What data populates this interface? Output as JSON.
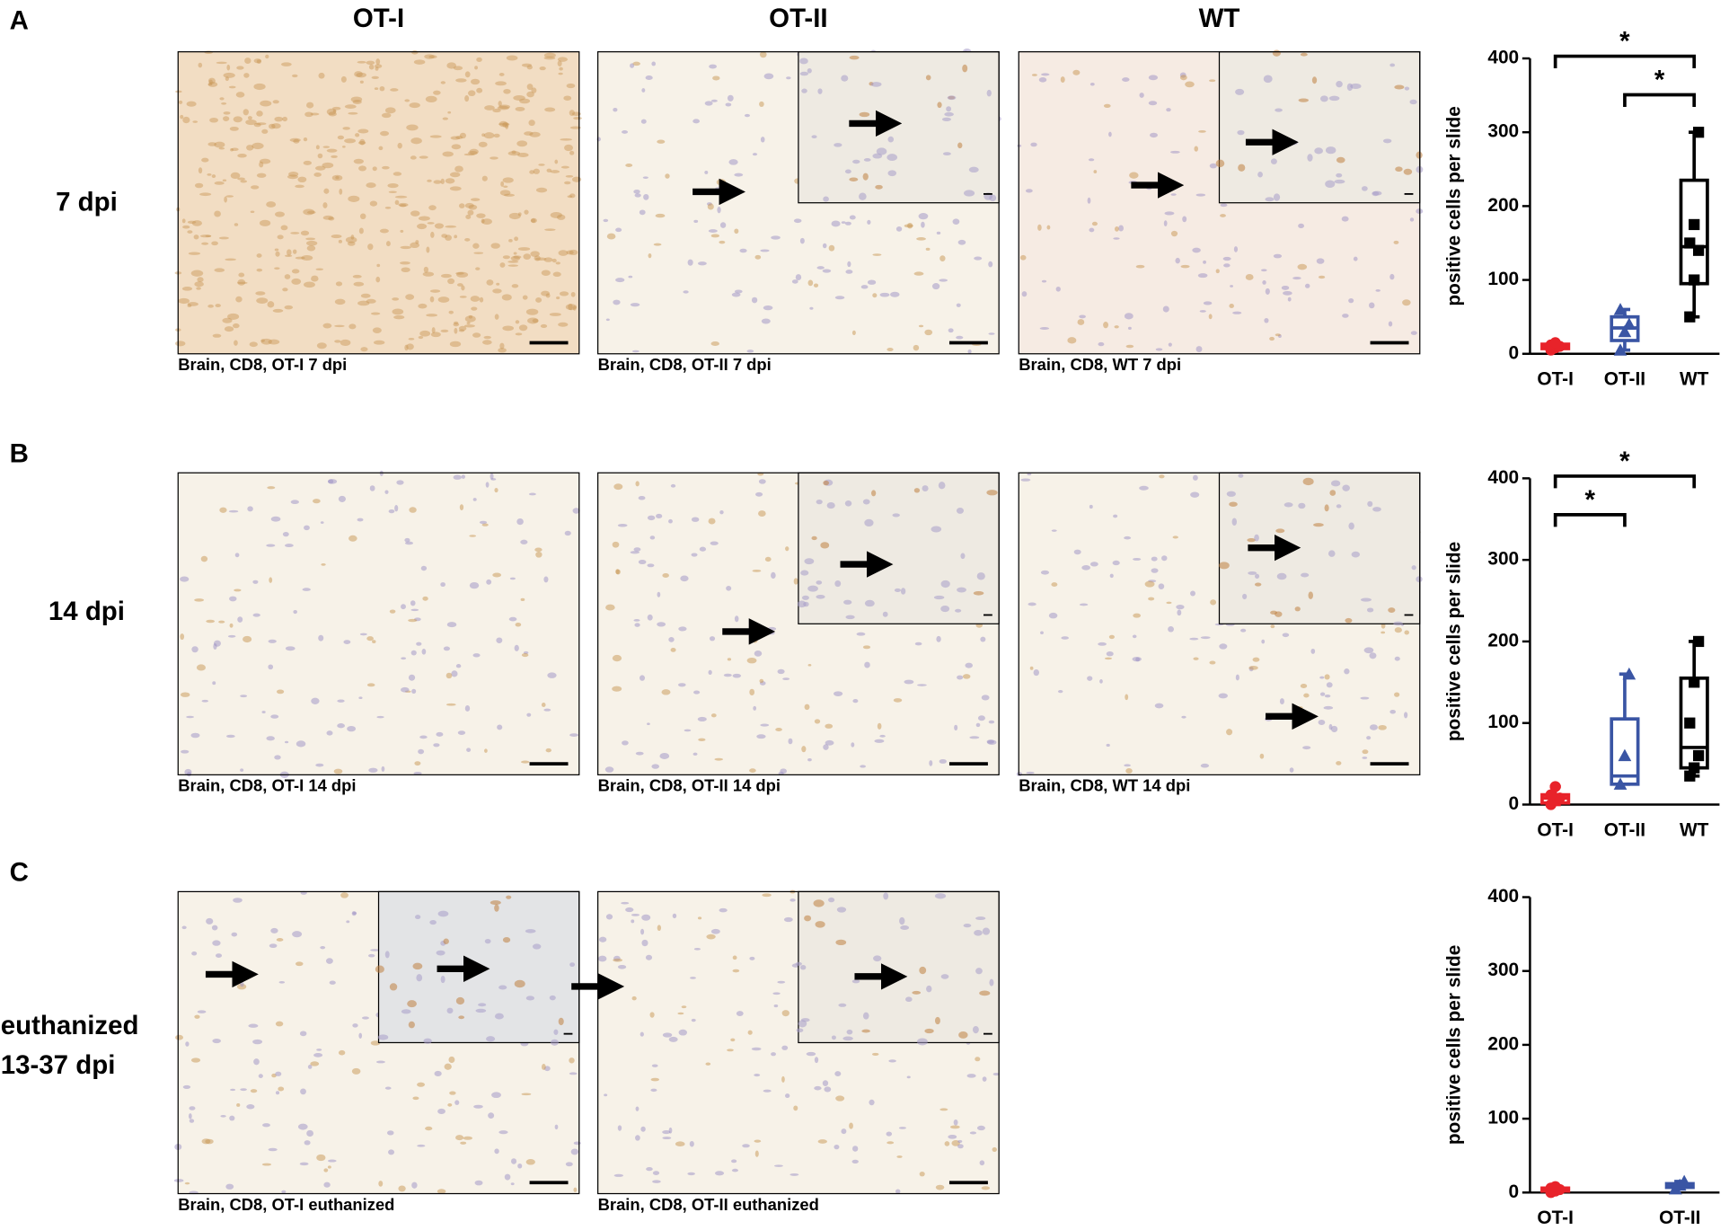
{
  "columns": [
    "OT-I",
    "OT-II",
    "WT"
  ],
  "rows": [
    {
      "letter": "A",
      "label": [
        "7 dpi"
      ],
      "captions": [
        "Brain, CD8, OT-I 7 dpi",
        "Brain, CD8, OT-II 7 dpi",
        "Brain, CD8, WT 7 dpi"
      ]
    },
    {
      "letter": "B",
      "label": [
        "14 dpi"
      ],
      "captions": [
        "Brain, CD8, OT-I 14 dpi",
        "Brain, CD8, OT-II 14 dpi",
        "Brain, CD8, WT 14 dpi"
      ]
    },
    {
      "letter": "C",
      "label": [
        "euthanized",
        "13-37 dpi"
      ],
      "captions": [
        "Brain, CD8, OT-I euthanized",
        "Brain, CD8, OT-II euthanized"
      ]
    }
  ],
  "chart_data": [
    {
      "type": "box",
      "ylabel": "positive cells per slide",
      "categories": [
        "OT-I",
        "OT-II",
        "WT"
      ],
      "ylim": [
        0,
        400
      ],
      "yticks": [
        0,
        100,
        200,
        300,
        400
      ],
      "boxes": [
        {
          "color": "#e8232a",
          "marker": "circle",
          "min": 5,
          "q1": 7,
          "median": 10,
          "q3": 13,
          "max": 15,
          "points": [
            5,
            8,
            10,
            12,
            15
          ]
        },
        {
          "color": "#3a55a4",
          "marker": "triangle",
          "min": 5,
          "q1": 18,
          "median": 35,
          "q3": 50,
          "max": 60,
          "points": [
            5,
            30,
            40,
            60
          ]
        },
        {
          "color": "#000000",
          "marker": "square",
          "min": 50,
          "q1": 95,
          "median": 145,
          "q3": 235,
          "max": 300,
          "points": [
            50,
            100,
            140,
            150,
            175,
            300
          ]
        }
      ],
      "significance": [
        {
          "from": 0,
          "to": 2,
          "label": "*"
        },
        {
          "from": 1,
          "to": 2,
          "label": "*"
        }
      ]
    },
    {
      "type": "box",
      "ylabel": "positive cells per slide",
      "categories": [
        "OT-I",
        "OT-II",
        "WT"
      ],
      "ylim": [
        0,
        400
      ],
      "yticks": [
        0,
        100,
        200,
        300,
        400
      ],
      "boxes": [
        {
          "color": "#e8232a",
          "marker": "circle",
          "min": 0,
          "q1": 2,
          "median": 8,
          "q3": 12,
          "max": 22,
          "points": [
            0,
            5,
            8,
            12,
            22
          ]
        },
        {
          "color": "#3a55a4",
          "marker": "triangle",
          "min": 25,
          "q1": 25,
          "median": 35,
          "q3": 105,
          "max": 160,
          "points": [
            25,
            60,
            160
          ]
        },
        {
          "color": "#000000",
          "marker": "square",
          "min": 35,
          "q1": 45,
          "median": 70,
          "q3": 155,
          "max": 200,
          "points": [
            35,
            45,
            60,
            100,
            150,
            200
          ]
        }
      ],
      "significance": [
        {
          "from": 0,
          "to": 2,
          "label": "*"
        },
        {
          "from": 0,
          "to": 1,
          "label": "*"
        }
      ]
    },
    {
      "type": "box",
      "ylabel": "positive cells per slide",
      "categories": [
        "OT-I",
        "OT-II"
      ],
      "ylim": [
        0,
        400
      ],
      "yticks": [
        0,
        100,
        200,
        300,
        400
      ],
      "boxes": [
        {
          "color": "#e8232a",
          "marker": "circle",
          "min": 0,
          "q1": 2,
          "median": 4,
          "q3": 6,
          "max": 8,
          "points": [
            0,
            2,
            4,
            6,
            8
          ]
        },
        {
          "color": "#3a55a4",
          "marker": "triangle",
          "min": 5,
          "q1": 7,
          "median": 10,
          "q3": 12,
          "max": 15,
          "points": [
            5,
            10,
            15
          ]
        }
      ],
      "significance": []
    }
  ]
}
